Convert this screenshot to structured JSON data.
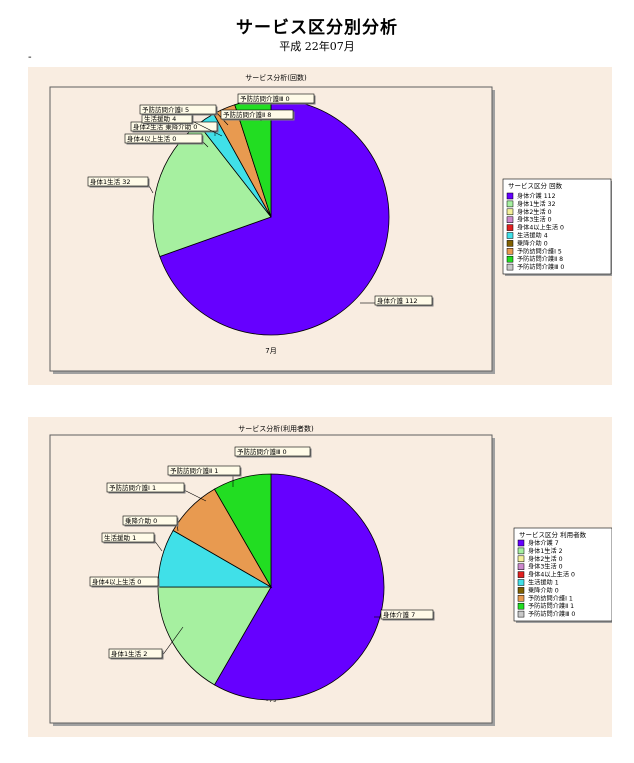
{
  "header": {
    "title": "サービス区分別分析",
    "subtitle": "平成 22年07月",
    "mark": "-"
  },
  "chart_data": [
    {
      "type": "pie",
      "title": "サービス分析(回数)",
      "xlabel": "7月",
      "legend_title": "サービス区分 回数",
      "legend_position": "right",
      "slices": [
        {
          "label": "身体介護",
          "value": 112,
          "color": "#6600ff"
        },
        {
          "label": "身体1生活",
          "value": 32,
          "color": "#a6f0a0"
        },
        {
          "label": "身体2生活",
          "value": 0,
          "color": "#f4f09a"
        },
        {
          "label": "身体3生活",
          "value": 0,
          "color": "#cc88cc"
        },
        {
          "label": "身体4以上生活",
          "value": 0,
          "color": "#e02020"
        },
        {
          "label": "生活援助",
          "value": 4,
          "color": "#40e0e8"
        },
        {
          "label": "乗降介助",
          "value": 0,
          "color": "#806000"
        },
        {
          "label": "予防訪問介護Ⅰ",
          "value": 5,
          "color": "#e89a50"
        },
        {
          "label": "予防訪問介護Ⅱ",
          "value": 8,
          "color": "#22dd22"
        },
        {
          "label": "予防訪問介護Ⅲ",
          "value": 0,
          "color": "#c8c8c8"
        }
      ],
      "callouts": [
        {
          "text": "身体介護 112"
        },
        {
          "text": "身体1生活 32"
        },
        {
          "text": "身体4以上生活 0"
        },
        {
          "text": "身体2生活 乗降介助 0"
        },
        {
          "text": "生活援助 4"
        },
        {
          "text": "予防訪問介護Ⅰ 5"
        },
        {
          "text": "予防訪問介護Ⅱ 8"
        },
        {
          "text": "予防訪問介護Ⅲ 0"
        }
      ]
    },
    {
      "type": "pie",
      "title": "サービス分析(利用者数)",
      "xlabel": "7月",
      "legend_title": "サービス区分 利用者数",
      "legend_position": "right",
      "slices": [
        {
          "label": "身体介護",
          "value": 7,
          "color": "#6600ff"
        },
        {
          "label": "身体1生活",
          "value": 2,
          "color": "#a6f0a0"
        },
        {
          "label": "身体2生活",
          "value": 0,
          "color": "#f4f09a"
        },
        {
          "label": "身体3生活",
          "value": 0,
          "color": "#cc88cc"
        },
        {
          "label": "身体4以上生活",
          "value": 0,
          "color": "#e02020"
        },
        {
          "label": "生活援助",
          "value": 1,
          "color": "#40e0e8"
        },
        {
          "label": "乗降介助",
          "value": 0,
          "color": "#806000"
        },
        {
          "label": "予防訪問介護Ⅰ",
          "value": 1,
          "color": "#e89a50"
        },
        {
          "label": "予防訪問介護Ⅱ",
          "value": 1,
          "color": "#22dd22"
        },
        {
          "label": "予防訪問介護Ⅲ",
          "value": 0,
          "color": "#c8c8c8"
        }
      ],
      "callouts": [
        {
          "text": "身体介護 7"
        },
        {
          "text": "身体1生活 2"
        },
        {
          "text": "身体4以上生活 0"
        },
        {
          "text": "生活援助 1"
        },
        {
          "text": "乗降介助 0"
        },
        {
          "text": "予防訪問介護Ⅰ 1"
        },
        {
          "text": "予防訪問介護Ⅱ 1"
        },
        {
          "text": "予防訪問介護Ⅲ 0"
        }
      ]
    }
  ]
}
